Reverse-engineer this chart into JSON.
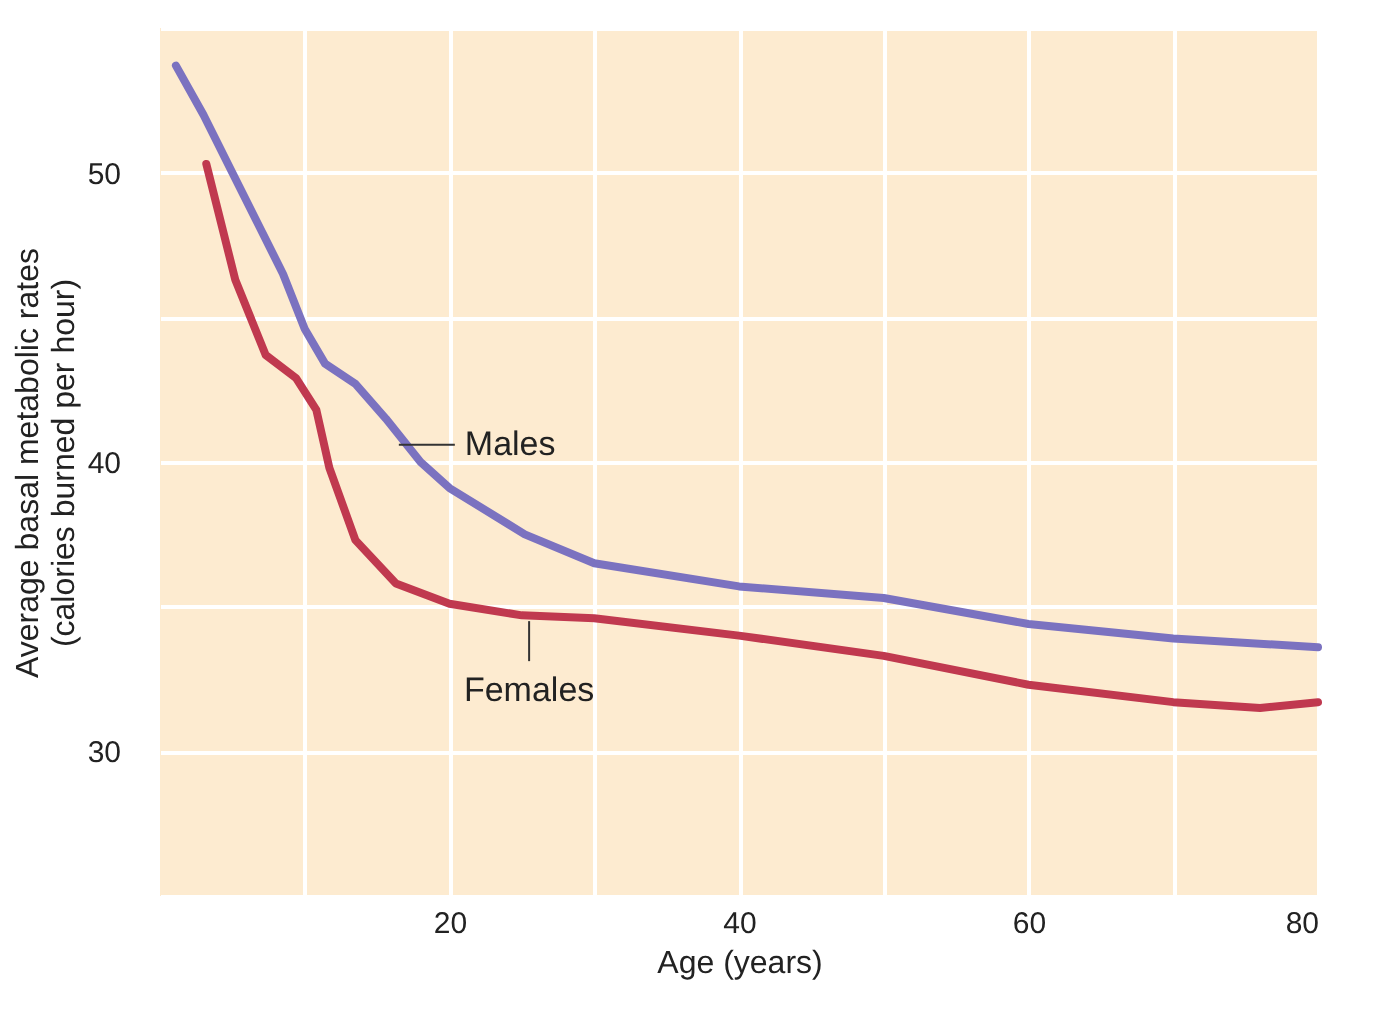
{
  "chart_data": {
    "type": "line",
    "xlabel": "Age (years)",
    "ylabel": "Average basal metabolic rates\n(calories burned per hour)",
    "xlim": [
      0,
      80
    ],
    "ylim": [
      25,
      55
    ],
    "xticks": [
      {
        "value": 10,
        "label": null
      },
      20,
      {
        "value": 30,
        "label": null
      },
      40,
      {
        "value": 50,
        "label": null
      },
      60,
      {
        "value": 70,
        "label": null
      },
      80
    ],
    "yticks": [
      {
        "value": 25,
        "label": null
      },
      30,
      {
        "value": 35,
        "label": null
      },
      40,
      {
        "value": 45,
        "label": null
      },
      50,
      {
        "value": 55,
        "label": null
      }
    ],
    "grid": true,
    "line_style": "solid",
    "marker": "none",
    "series": [
      {
        "color": "#7b72c0",
        "x": [
          1.1,
          3,
          5,
          6.6,
          8.5,
          10,
          11.4,
          13.5,
          15.6,
          18,
          20,
          25.2,
          30,
          40,
          50,
          60,
          70,
          80
        ],
        "values": [
          53.7,
          52,
          50,
          48.4,
          46.5,
          44.6,
          43.4,
          42.7,
          41.5,
          40,
          39.1,
          37.5,
          36.5,
          35.7,
          35.3,
          34.4,
          33.9,
          33.6
        ]
      },
      {
        "color": "#c0394f",
        "x": [
          3.2,
          5.2,
          7.3,
          9.4,
          10.8,
          11.7,
          13.5,
          16.3,
          20,
          25,
          30,
          40,
          50,
          60,
          70,
          76,
          80
        ],
        "values": [
          50.3,
          46.3,
          43.7,
          42.9,
          41.8,
          39.8,
          37.3,
          35.8,
          35.1,
          34.7,
          34.6,
          34.0,
          33.3,
          32.3,
          31.7,
          31.5,
          31.7
        ]
      }
    ],
    "annotations": [
      {
        "text": "Males",
        "x": 16.5,
        "y": 40.6
      },
      {
        "text": "Females",
        "x": 25.5,
        "y": 34.5
      }
    ]
  }
}
